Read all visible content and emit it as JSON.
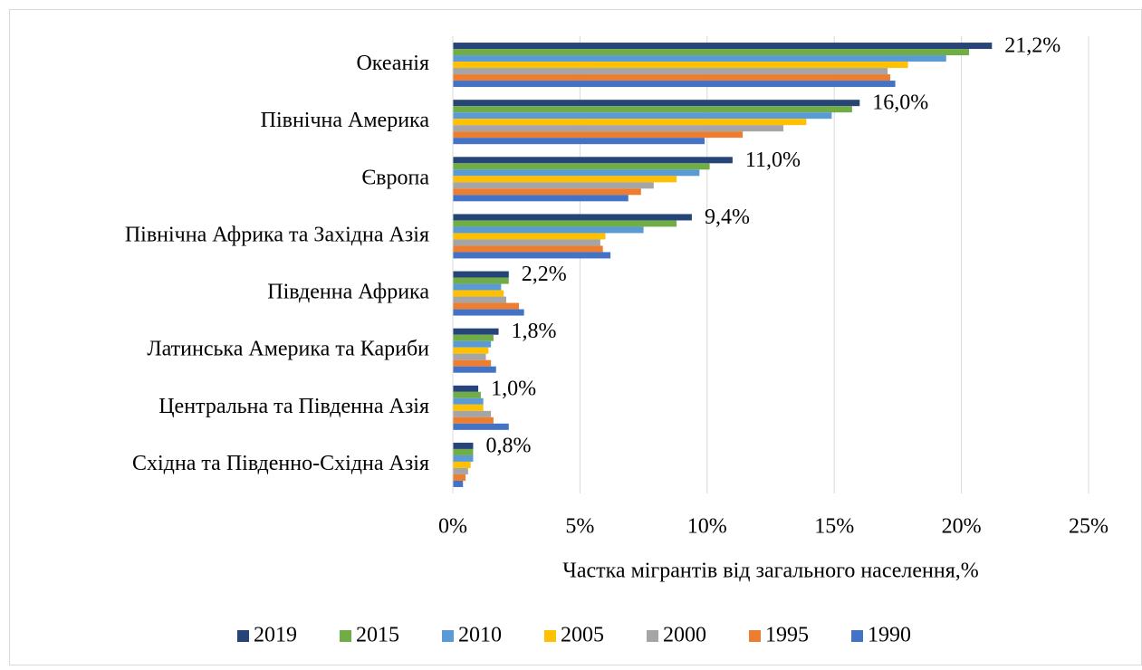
{
  "chart_data": {
    "type": "hbar",
    "x_label": "Частка мігрантів від загального населення,%",
    "categories": [
      "Океанія",
      "Північна Америка",
      "Європа",
      "Північна Африка та Західна Азія",
      "Південна Африка",
      "Латинська Америка та Кариби",
      "Центральна та Південна Азія",
      "Східна та Південно-Східна Азія"
    ],
    "series": [
      {
        "name": "2019",
        "color": "#264478",
        "values": [
          21.2,
          16.0,
          11.0,
          9.4,
          2.2,
          1.8,
          1.0,
          0.8
        ],
        "value_labels": [
          "21,2%",
          "16,0%",
          "11,0%",
          "9,4%",
          "2,2%",
          "1,8%",
          "1,0%",
          "0,8%"
        ]
      },
      {
        "name": "2015",
        "color": "#70ad47",
        "values": [
          20.3,
          15.7,
          10.1,
          8.8,
          2.2,
          1.6,
          1.1,
          0.8
        ]
      },
      {
        "name": "2010",
        "color": "#5b9bd5",
        "values": [
          19.4,
          14.9,
          9.7,
          7.5,
          1.9,
          1.5,
          1.2,
          0.8
        ]
      },
      {
        "name": "2005",
        "color": "#ffc000",
        "values": [
          17.9,
          13.9,
          8.8,
          6.0,
          2.0,
          1.4,
          1.2,
          0.7
        ]
      },
      {
        "name": "2000",
        "color": "#a5a5a5",
        "values": [
          17.1,
          13.0,
          7.9,
          5.8,
          2.1,
          1.3,
          1.5,
          0.6
        ]
      },
      {
        "name": "1995",
        "color": "#ed7d31",
        "values": [
          17.2,
          11.4,
          7.4,
          5.9,
          2.6,
          1.5,
          1.6,
          0.5
        ]
      },
      {
        "name": "1990",
        "color": "#4472c4",
        "values": [
          17.4,
          9.9,
          6.9,
          6.2,
          2.8,
          1.7,
          2.2,
          0.4
        ]
      }
    ],
    "xlim": [
      0,
      25
    ],
    "xticks": [
      {
        "value": 0,
        "label": "0%"
      },
      {
        "value": 5,
        "label": "5%"
      },
      {
        "value": 10,
        "label": "10%"
      },
      {
        "value": 15,
        "label": "15%"
      },
      {
        "value": 20,
        "label": "20%"
      },
      {
        "value": 25,
        "label": "25%"
      }
    ],
    "grid": true,
    "legend": "bottom"
  }
}
